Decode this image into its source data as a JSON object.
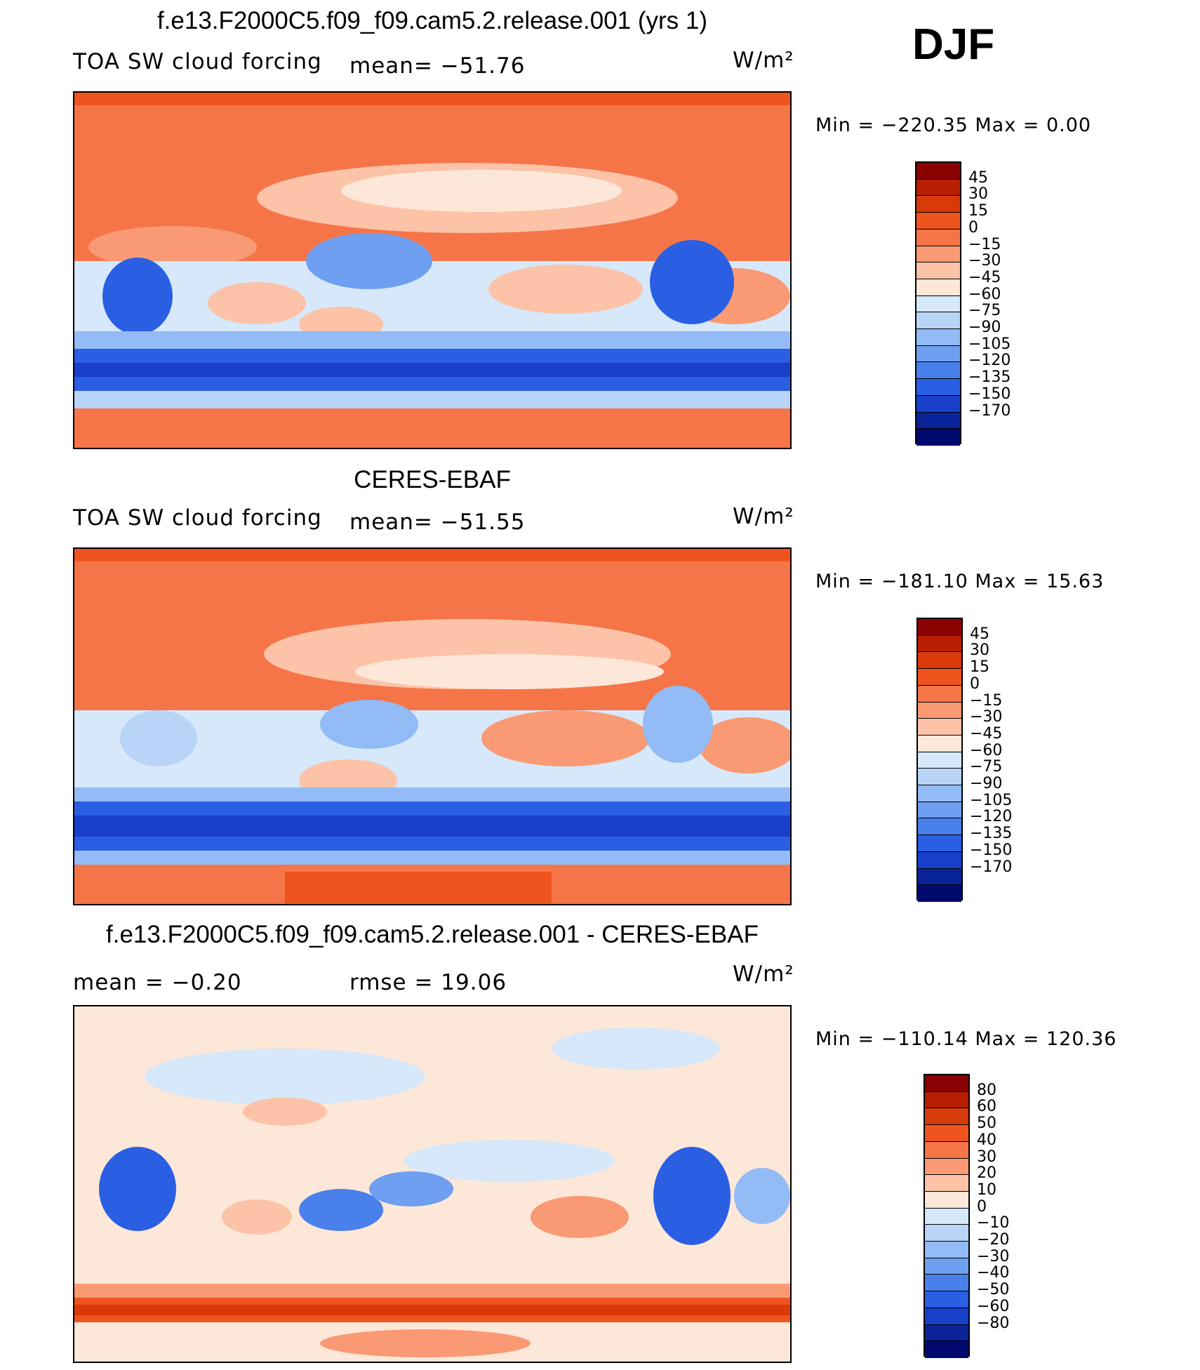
{
  "season": "DJF",
  "panels": [
    {
      "id": "model",
      "title": "f.e13.F2000C5.f09_f09.cam5.2.release.001 (yrs 1)",
      "left_label": "TOA SW cloud forcing",
      "mid_label": "mean= −51.76",
      "units": "W/m²",
      "minmax": "Min = −220.35 Max = 0.00"
    },
    {
      "id": "obs",
      "title": "CERES-EBAF",
      "left_label": "TOA SW cloud forcing",
      "mid_label": "mean= −51.55",
      "units": "W/m²",
      "minmax": "Min = −181.10 Max = 15.63"
    },
    {
      "id": "diff",
      "title": "f.e13.F2000C5.f09_f09.cam5.2.release.001 - CERES-EBAF",
      "left_label": "mean = −0.20",
      "mid_label": "rmse = 19.06",
      "units": "W/m²",
      "minmax": "Min = −110.14 Max = 120.36"
    }
  ],
  "colorbars": [
    {
      "labels": [
        "45",
        "30",
        "15",
        "0",
        "−15",
        "−30",
        "−45",
        "−60",
        "−75",
        "−90",
        "−105",
        "−120",
        "−135",
        "−150",
        "−170"
      ],
      "colors": [
        "#8b0000",
        "#b81e00",
        "#d93a0a",
        "#f0541e",
        "#f57548",
        "#f99a74",
        "#fcc3a8",
        "#fde7d8",
        "#d6e8fa",
        "#b8d5f8",
        "#93bbf5",
        "#6e9ff0",
        "#4a80ec",
        "#2a5fe3",
        "#173fca",
        "#0a2399",
        "#000a6e"
      ]
    },
    {
      "labels": [
        "45",
        "30",
        "15",
        "0",
        "−15",
        "−30",
        "−45",
        "−60",
        "−75",
        "−90",
        "−105",
        "−120",
        "−135",
        "−150",
        "−170"
      ],
      "colors": [
        "#8b0000",
        "#b81e00",
        "#d93a0a",
        "#f0541e",
        "#f57548",
        "#f99a74",
        "#fcc3a8",
        "#fde7d8",
        "#d6e8fa",
        "#b8d5f8",
        "#93bbf5",
        "#6e9ff0",
        "#4a80ec",
        "#2a5fe3",
        "#173fca",
        "#0a2399",
        "#000a6e"
      ]
    },
    {
      "labels": [
        "80",
        "60",
        "50",
        "40",
        "30",
        "20",
        "10",
        "0",
        "−10",
        "−20",
        "−30",
        "−40",
        "−50",
        "−60",
        "−80"
      ],
      "colors": [
        "#8b0000",
        "#b81e00",
        "#d93a0a",
        "#f0541e",
        "#f57548",
        "#f99a74",
        "#fcc3a8",
        "#fde7d8",
        "#d6e8fa",
        "#b8d5f8",
        "#93bbf5",
        "#6e9ff0",
        "#4a80ec",
        "#2a5fe3",
        "#173fca",
        "#0a2399",
        "#000a6e"
      ]
    }
  ],
  "chart_data": [
    {
      "type": "heatmap",
      "title": "f.e13.F2000C5.f09_f09.cam5.2.release.001 (yrs 1)",
      "subtitle": "TOA SW cloud forcing",
      "mean": -51.76,
      "units": "W/m²",
      "min": -220.35,
      "max": 0.0,
      "contour_levels": [
        -170,
        -150,
        -135,
        -120,
        -105,
        -90,
        -75,
        -60,
        -45,
        -30,
        -15,
        0,
        15,
        30,
        45
      ]
    },
    {
      "type": "heatmap",
      "title": "CERES-EBAF",
      "subtitle": "TOA SW cloud forcing",
      "mean": -51.55,
      "units": "W/m²",
      "min": -181.1,
      "max": 15.63,
      "contour_levels": [
        -170,
        -150,
        -135,
        -120,
        -105,
        -90,
        -75,
        -60,
        -45,
        -30,
        -15,
        0,
        15,
        30,
        45
      ]
    },
    {
      "type": "heatmap",
      "title": "f.e13.F2000C5.f09_f09.cam5.2.release.001 - CERES-EBAF",
      "mean": -0.2,
      "rmse": 19.06,
      "units": "W/m²",
      "min": -110.14,
      "max": 120.36,
      "contour_levels": [
        -80,
        -60,
        -50,
        -40,
        -30,
        -20,
        -10,
        0,
        10,
        20,
        30,
        40,
        50,
        60,
        80
      ]
    }
  ]
}
